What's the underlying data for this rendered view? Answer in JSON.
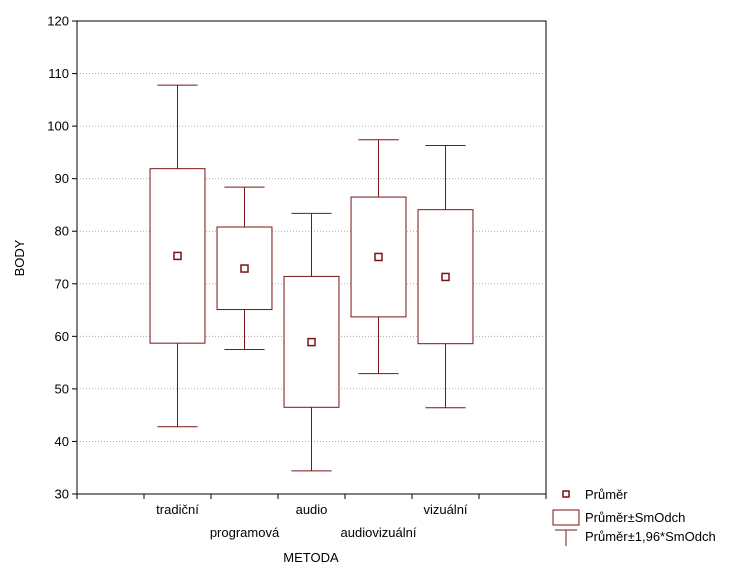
{
  "chart_data": {
    "type": "box",
    "xlabel": "METODA",
    "ylabel": "BODY",
    "ylim": [
      30,
      120
    ],
    "yticks": [
      30,
      40,
      50,
      60,
      70,
      80,
      90,
      100,
      110,
      120
    ],
    "grid": "horizontal dotted",
    "categories": [
      "tradiční",
      "programová",
      "audio",
      "audiovizuální",
      "vizuální"
    ],
    "series": [
      {
        "name": "Průměr",
        "values": [
          75.3,
          72.9,
          58.9,
          75.1,
          71.3
        ]
      },
      {
        "name": "Průměr±SmOdch",
        "low": [
          58.7,
          65.1,
          46.5,
          63.7,
          58.6
        ],
        "high": [
          91.9,
          80.8,
          71.4,
          86.5,
          84.1
        ]
      },
      {
        "name": "Průměr±1,96*SmOdch",
        "low": [
          42.8,
          57.5,
          34.4,
          52.9,
          46.4
        ],
        "high": [
          107.8,
          88.4,
          83.4,
          97.4,
          96.3
        ]
      }
    ],
    "legend_position": "bottom-right",
    "color": "#7a1416"
  }
}
